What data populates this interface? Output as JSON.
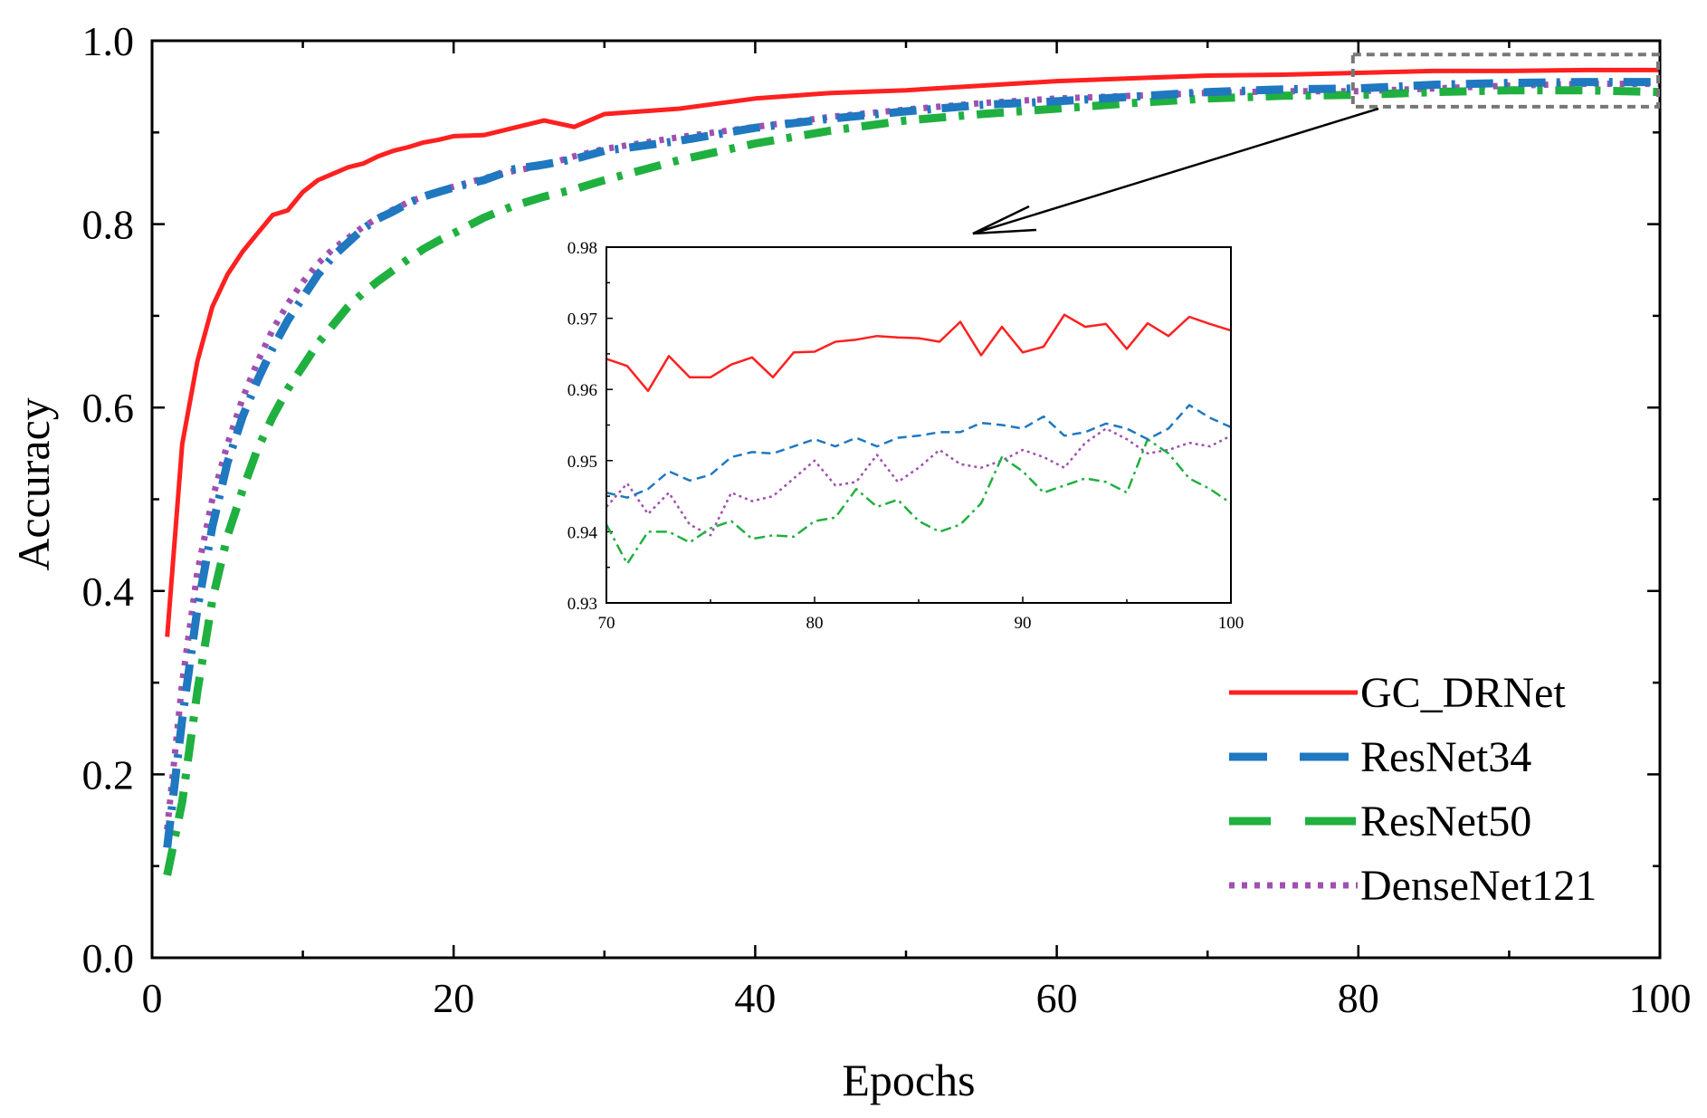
{
  "chart_data": {
    "type": "line",
    "title": "",
    "xlabel": "Epochs",
    "ylabel": "Accuracy",
    "xlim": [
      0,
      100
    ],
    "ylim": [
      0,
      1.0
    ],
    "xticks": [
      "0",
      "20",
      "40",
      "60",
      "80",
      "100"
    ],
    "yticks": [
      "0.0",
      "0.2",
      "0.4",
      "0.6",
      "0.8",
      "1.0"
    ],
    "legend_position": "bottom-right",
    "series": [
      {
        "name": "GC_DRNet",
        "color": "#ff2020",
        "style": "solid",
        "x": [
          1,
          2,
          3,
          4,
          5,
          6,
          7,
          8,
          9,
          10,
          11,
          12,
          13,
          14,
          15,
          16,
          17,
          18,
          19,
          20,
          22,
          24,
          26,
          28,
          30,
          35,
          40,
          45,
          50,
          55,
          60,
          65,
          70,
          75,
          80,
          85,
          90,
          95,
          100
        ],
        "y": [
          0.35,
          0.56,
          0.65,
          0.71,
          0.745,
          0.77,
          0.79,
          0.81,
          0.815,
          0.835,
          0.848,
          0.855,
          0.862,
          0.866,
          0.874,
          0.88,
          0.884,
          0.889,
          0.892,
          0.896,
          0.897,
          0.905,
          0.913,
          0.906,
          0.92,
          0.926,
          0.937,
          0.943,
          0.946,
          0.951,
          0.956,
          0.959,
          0.962,
          0.963,
          0.965,
          0.967,
          0.967,
          0.968,
          0.968
        ]
      },
      {
        "name": "ResNet34",
        "color": "#1f78c0",
        "style": "dashed",
        "x": [
          1,
          2,
          3,
          4,
          5,
          6,
          7,
          8,
          9,
          10,
          11,
          12,
          13,
          14,
          15,
          16,
          17,
          18,
          19,
          20,
          22,
          24,
          26,
          28,
          30,
          35,
          40,
          45,
          50,
          55,
          60,
          65,
          70,
          75,
          80,
          85,
          90,
          95,
          100
        ],
        "y": [
          0.12,
          0.26,
          0.38,
          0.47,
          0.54,
          0.59,
          0.63,
          0.665,
          0.695,
          0.72,
          0.745,
          0.765,
          0.78,
          0.795,
          0.806,
          0.814,
          0.823,
          0.83,
          0.835,
          0.84,
          0.848,
          0.86,
          0.865,
          0.871,
          0.88,
          0.891,
          0.905,
          0.915,
          0.923,
          0.93,
          0.934,
          0.939,
          0.944,
          0.947,
          0.948,
          0.952,
          0.954,
          0.955,
          0.955
        ]
      },
      {
        "name": "ResNet50",
        "color": "#20b040",
        "style": "dashdot",
        "x": [
          1,
          2,
          3,
          4,
          5,
          6,
          7,
          8,
          9,
          10,
          11,
          12,
          13,
          14,
          15,
          16,
          17,
          18,
          19,
          20,
          22,
          24,
          26,
          28,
          30,
          35,
          40,
          45,
          50,
          55,
          60,
          65,
          70,
          75,
          80,
          85,
          90,
          95,
          100
        ],
        "y": [
          0.09,
          0.17,
          0.29,
          0.39,
          0.46,
          0.51,
          0.555,
          0.59,
          0.62,
          0.645,
          0.67,
          0.69,
          0.71,
          0.725,
          0.738,
          0.75,
          0.762,
          0.773,
          0.782,
          0.79,
          0.807,
          0.82,
          0.83,
          0.838,
          0.848,
          0.87,
          0.888,
          0.902,
          0.913,
          0.92,
          0.926,
          0.932,
          0.937,
          0.94,
          0.941,
          0.944,
          0.946,
          0.946,
          0.944
        ]
      },
      {
        "name": "DenseNet121",
        "color": "#a050b0",
        "style": "dotted",
        "x": [
          1,
          2,
          3,
          4,
          5,
          6,
          7,
          8,
          9,
          10,
          11,
          12,
          13,
          14,
          15,
          16,
          17,
          18,
          19,
          20,
          22,
          24,
          26,
          28,
          30,
          35,
          40,
          45,
          50,
          55,
          60,
          65,
          70,
          75,
          80,
          85,
          90,
          95,
          100
        ],
        "y": [
          0.14,
          0.3,
          0.42,
          0.5,
          0.56,
          0.61,
          0.65,
          0.685,
          0.713,
          0.737,
          0.757,
          0.773,
          0.785,
          0.797,
          0.807,
          0.816,
          0.824,
          0.83,
          0.836,
          0.841,
          0.85,
          0.858,
          0.864,
          0.874,
          0.882,
          0.895,
          0.906,
          0.917,
          0.925,
          0.932,
          0.937,
          0.94,
          0.943,
          0.945,
          0.945,
          0.948,
          0.951,
          0.953,
          0.953
        ]
      }
    ],
    "inset": {
      "xlim": [
        70,
        100
      ],
      "ylim": [
        0.93,
        0.98
      ],
      "xticks": [
        "70",
        "80",
        "90",
        "100"
      ],
      "yticks": [
        "0.93",
        "0.94",
        "0.95",
        "0.96",
        "0.97",
        "0.98"
      ],
      "zoom_region": {
        "x": [
          80,
          100
        ],
        "y": [
          0.93,
          0.985
        ]
      },
      "series": [
        {
          "name": "GC_DRNet",
          "color": "#ff2020",
          "style": "solid",
          "x": [
            70,
            71,
            72,
            73,
            74,
            75,
            76,
            77,
            78,
            79,
            80,
            81,
            82,
            83,
            84,
            85,
            86,
            87,
            88,
            89,
            90,
            91,
            92,
            93,
            94,
            95,
            96,
            97,
            98,
            99,
            100
          ],
          "y": [
            0.9643,
            0.9633,
            0.9598,
            0.9647,
            0.9617,
            0.9617,
            0.9635,
            0.9645,
            0.9617,
            0.9652,
            0.9653,
            0.9667,
            0.967,
            0.9675,
            0.9673,
            0.9672,
            0.9667,
            0.9695,
            0.9648,
            0.9688,
            0.9652,
            0.966,
            0.9705,
            0.9688,
            0.9692,
            0.9657,
            0.9693,
            0.9675,
            0.9702,
            0.9692,
            0.9683
          ]
        },
        {
          "name": "ResNet34",
          "color": "#1f78c0",
          "style": "dashed",
          "x": [
            70,
            71,
            72,
            73,
            74,
            75,
            76,
            77,
            78,
            79,
            80,
            81,
            82,
            83,
            84,
            85,
            86,
            87,
            88,
            89,
            90,
            91,
            92,
            93,
            94,
            95,
            96,
            97,
            98,
            99,
            100
          ],
          "y": [
            0.9455,
            0.9448,
            0.946,
            0.9485,
            0.9472,
            0.948,
            0.9505,
            0.9512,
            0.951,
            0.952,
            0.953,
            0.952,
            0.9532,
            0.952,
            0.9532,
            0.9535,
            0.954,
            0.954,
            0.9553,
            0.955,
            0.9545,
            0.9562,
            0.9535,
            0.954,
            0.9552,
            0.9545,
            0.953,
            0.9545,
            0.9578,
            0.956,
            0.9547
          ]
        },
        {
          "name": "ResNet50",
          "color": "#20b040",
          "style": "dashdot",
          "x": [
            70,
            71,
            72,
            73,
            74,
            75,
            76,
            77,
            78,
            79,
            80,
            81,
            82,
            83,
            84,
            85,
            86,
            87,
            88,
            89,
            90,
            91,
            92,
            93,
            94,
            95,
            96,
            97,
            98,
            99,
            100
          ],
          "y": [
            0.941,
            0.9355,
            0.94,
            0.94,
            0.9385,
            0.9405,
            0.9415,
            0.939,
            0.9395,
            0.9393,
            0.9415,
            0.942,
            0.946,
            0.9435,
            0.9445,
            0.9415,
            0.94,
            0.941,
            0.944,
            0.9505,
            0.9485,
            0.9455,
            0.9465,
            0.9475,
            0.947,
            0.9455,
            0.953,
            0.951,
            0.9475,
            0.946,
            0.944
          ]
        },
        {
          "name": "DenseNet121",
          "color": "#a050b0",
          "style": "dotted",
          "x": [
            70,
            71,
            72,
            73,
            74,
            75,
            76,
            77,
            78,
            79,
            80,
            81,
            82,
            83,
            84,
            85,
            86,
            87,
            88,
            89,
            90,
            91,
            92,
            93,
            94,
            95,
            96,
            97,
            98,
            99,
            100
          ],
          "y": [
            0.9435,
            0.9468,
            0.9425,
            0.9455,
            0.941,
            0.9395,
            0.9455,
            0.9443,
            0.945,
            0.9475,
            0.95,
            0.9465,
            0.947,
            0.9508,
            0.947,
            0.949,
            0.9515,
            0.9495,
            0.949,
            0.95,
            0.9515,
            0.9505,
            0.949,
            0.9525,
            0.9545,
            0.953,
            0.951,
            0.9515,
            0.9525,
            0.952,
            0.9535
          ]
        }
      ]
    }
  }
}
